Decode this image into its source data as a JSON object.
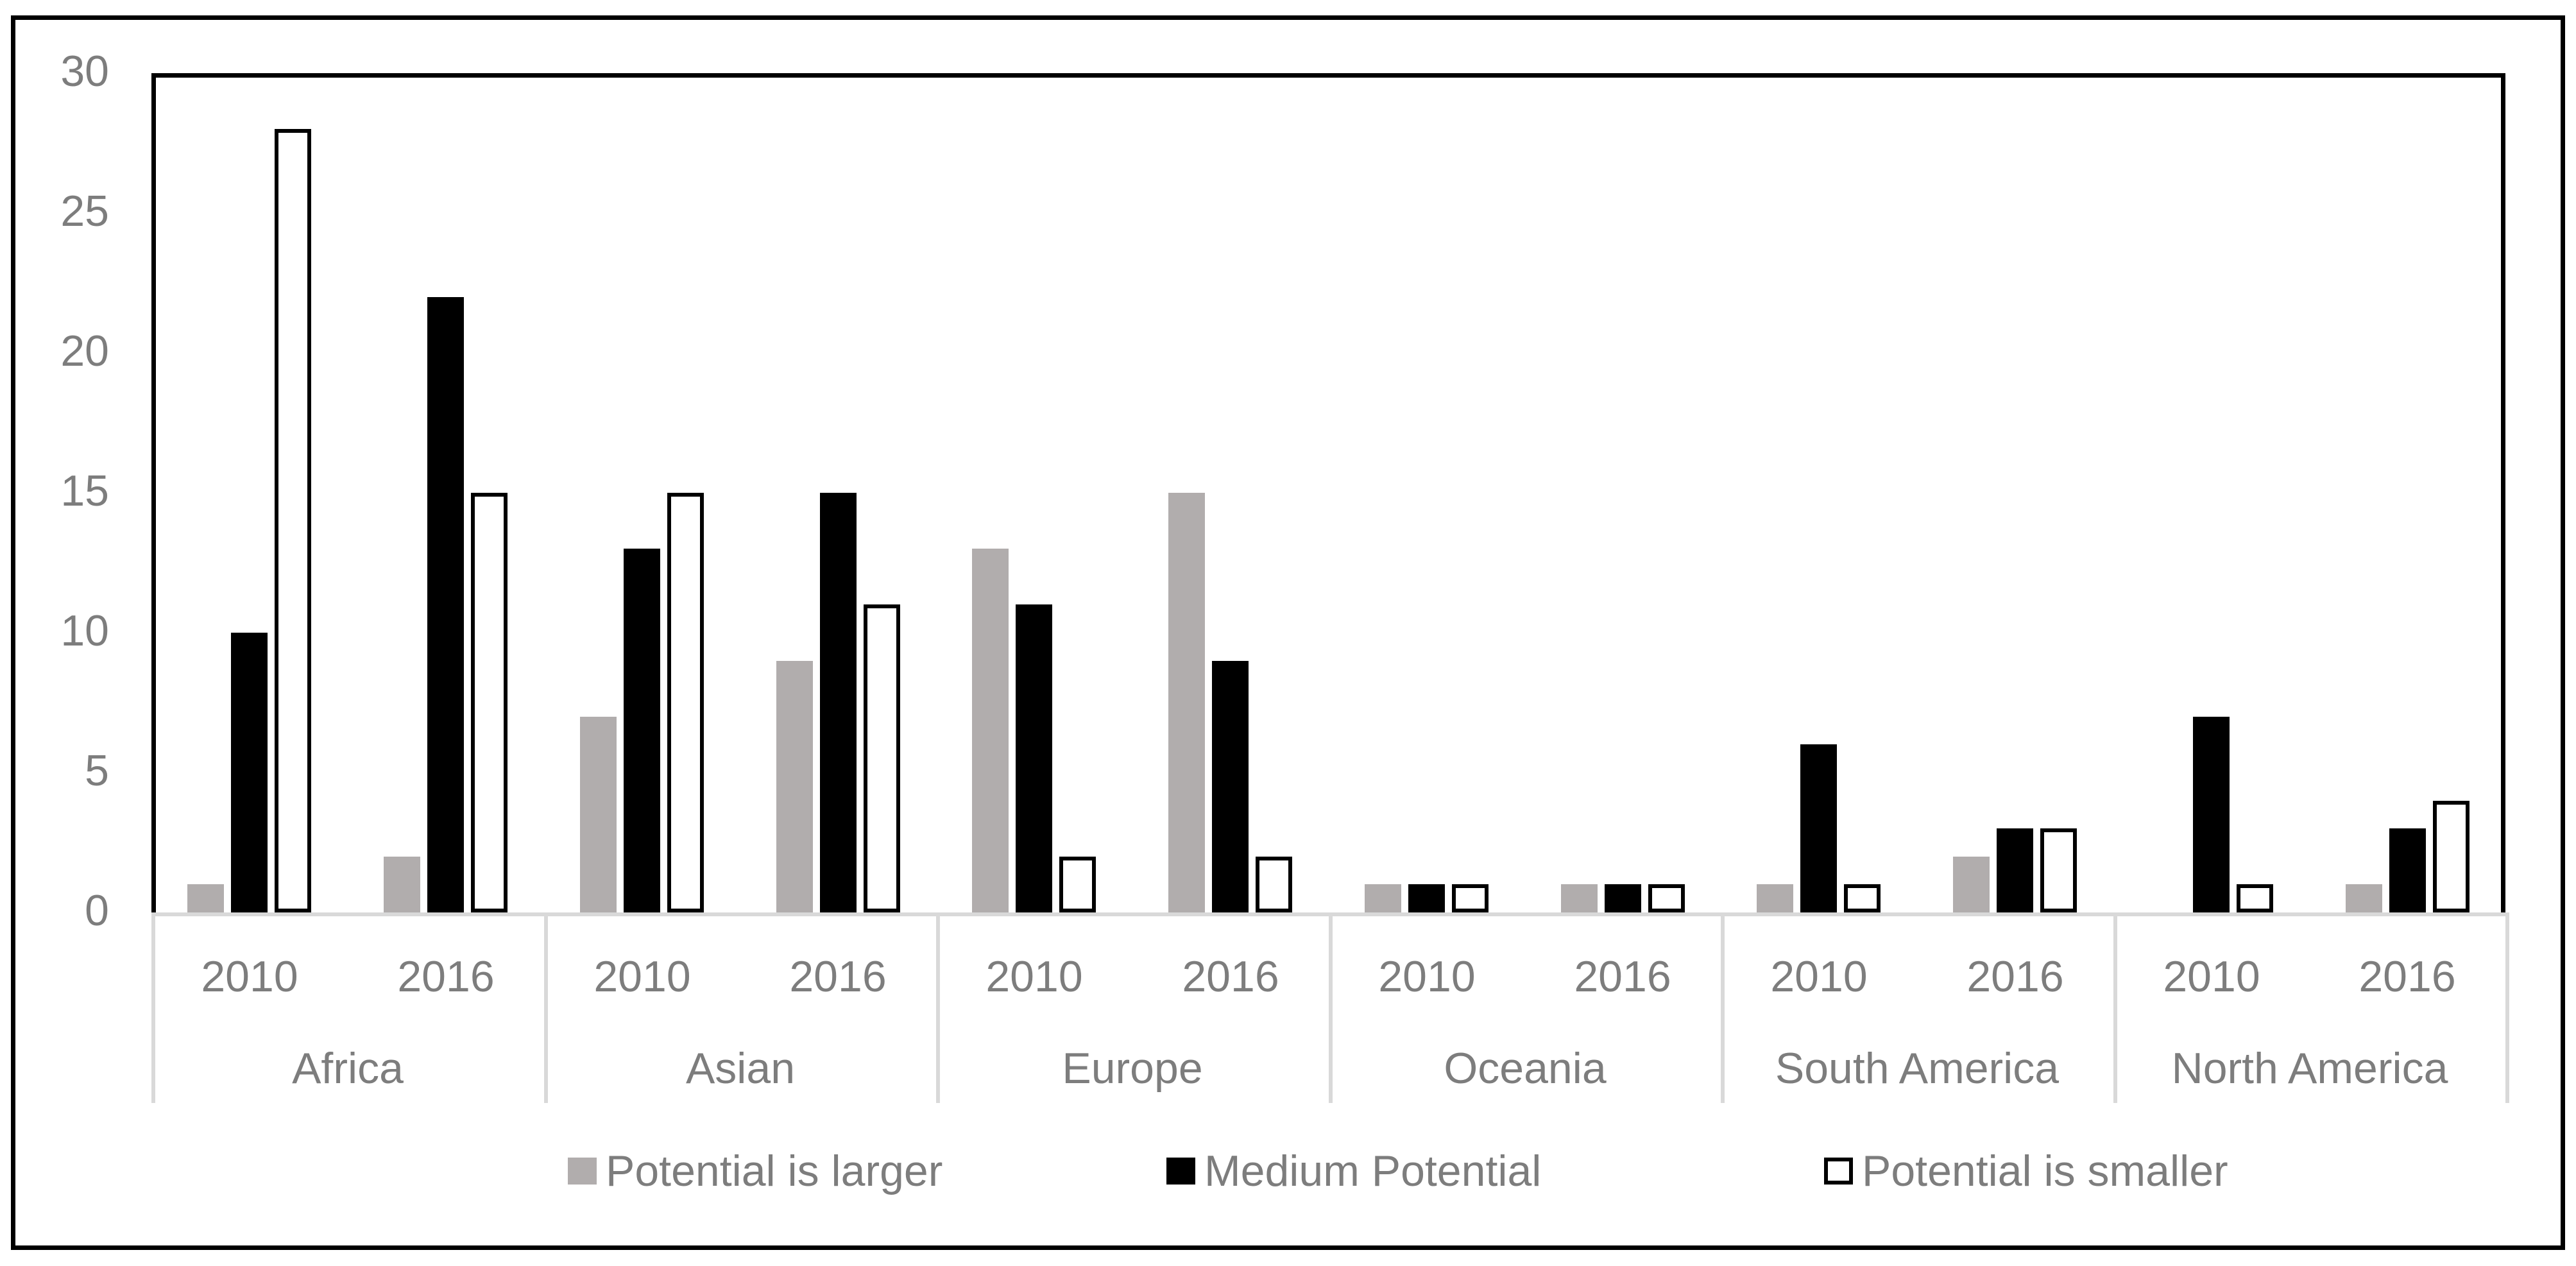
{
  "chart_data": {
    "type": "bar",
    "title": "",
    "xlabel": "",
    "ylabel": "",
    "ylim": [
      0,
      30
    ],
    "yticks": [
      0,
      5,
      10,
      15,
      20,
      25,
      30
    ],
    "grid": false,
    "legend_position": "bottom",
    "series": [
      {
        "name": "Potential is larger",
        "color": "#b1adad",
        "style": "filled"
      },
      {
        "name": "Medium Potential",
        "color": "#000000",
        "style": "filled"
      },
      {
        "name": "Potential is smaller",
        "color": "#ffffff",
        "style": "outlined",
        "border_color": "#000000"
      }
    ],
    "groups": [
      {
        "label": "Africa",
        "years": [
          {
            "label": "2010",
            "values": [
              1,
              10,
              28
            ]
          },
          {
            "label": "2016",
            "values": [
              2,
              22,
              15
            ]
          }
        ]
      },
      {
        "label": "Asian",
        "years": [
          {
            "label": "2010",
            "values": [
              7,
              13,
              15
            ]
          },
          {
            "label": "2016",
            "values": [
              9,
              15,
              11
            ]
          }
        ]
      },
      {
        "label": "Europe",
        "years": [
          {
            "label": "2010",
            "values": [
              13,
              11,
              2
            ]
          },
          {
            "label": "2016",
            "values": [
              15,
              9,
              2
            ]
          }
        ]
      },
      {
        "label": "Oceania",
        "years": [
          {
            "label": "2010",
            "values": [
              1,
              1,
              1
            ]
          },
          {
            "label": "2016",
            "values": [
              1,
              1,
              1
            ]
          }
        ]
      },
      {
        "label": "South America",
        "years": [
          {
            "label": "2010",
            "values": [
              1,
              6,
              1
            ]
          },
          {
            "label": "2016",
            "values": [
              2,
              3,
              3
            ]
          }
        ]
      },
      {
        "label": "North America",
        "years": [
          {
            "label": "2010",
            "values": [
              0,
              7,
              1
            ]
          },
          {
            "label": "2016",
            "values": [
              1,
              3,
              4
            ]
          }
        ]
      }
    ]
  },
  "colors": {
    "background": "#ffffff",
    "outer_border": "#000000",
    "plot_border": "#000000",
    "axis_line": "#d9d9d9",
    "axis_text": "#7d7d7d"
  }
}
